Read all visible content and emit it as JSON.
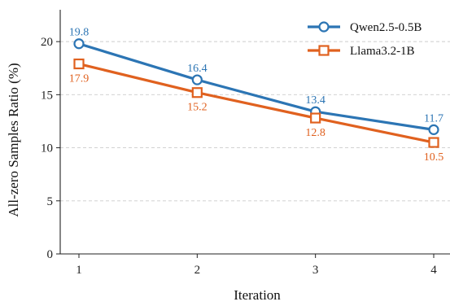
{
  "chart_data": {
    "type": "line",
    "title": "",
    "xlabel": "Iteration",
    "ylabel": "All-zero Samples Ratio (%)",
    "x": [
      1,
      2,
      3,
      4
    ],
    "xticks": [
      "1",
      "2",
      "3",
      "4"
    ],
    "ylim": [
      0,
      23
    ],
    "yticks": [
      "0",
      "5",
      "10",
      "15",
      "20"
    ],
    "grid": "horizontal dashed",
    "legend_position": "top-right",
    "series": [
      {
        "name": "Qwen2.5-0.5B",
        "values": [
          19.8,
          16.4,
          13.4,
          11.7
        ],
        "labels": [
          "19.8",
          "16.4",
          "13.4",
          "11.7"
        ],
        "color": "#2c75b4",
        "marker": "circle"
      },
      {
        "name": "Llama3.2-1B",
        "values": [
          17.9,
          15.2,
          12.8,
          10.5
        ],
        "labels": [
          "17.9",
          "15.2",
          "12.8",
          "10.5"
        ],
        "color": "#e0611f",
        "marker": "square"
      }
    ]
  }
}
